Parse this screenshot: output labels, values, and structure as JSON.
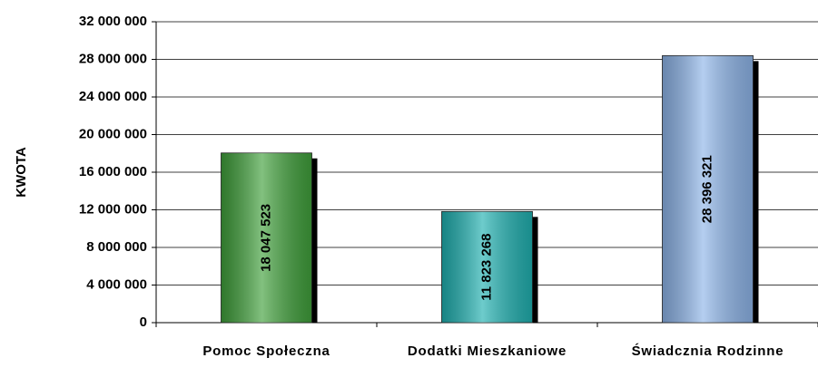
{
  "chart_data": {
    "type": "bar",
    "ylabel": "KWOTA",
    "categories": [
      "Pomoc Społeczna",
      "Dodatki Mieszkaniowe",
      "Świadcznia Rodzinne"
    ],
    "values": [
      18047523,
      11823268,
      28396321
    ],
    "value_labels": [
      "18 047 523",
      "11 823 268",
      "28 396 321"
    ],
    "colors": [
      "#3f9f3a",
      "#1fb0b0",
      "#8db4e8"
    ],
    "ylim": [
      0,
      32000000
    ],
    "yticks": [
      0,
      {
        "value": 4000000,
        "label": "4 000 000"
      },
      {
        "value": 8000000,
        "label": "8 000 000"
      },
      {
        "value": 12000000,
        "label": "12 000 000"
      },
      {
        "value": 16000000,
        "label": "16 000 000"
      },
      {
        "value": 20000000,
        "label": "20 000 000"
      },
      {
        "value": 24000000,
        "label": "24 000 000"
      },
      {
        "value": 28000000,
        "label": "28 000 000"
      },
      {
        "value": 32000000,
        "label": "32 000 000"
      }
    ],
    "grid": true
  }
}
